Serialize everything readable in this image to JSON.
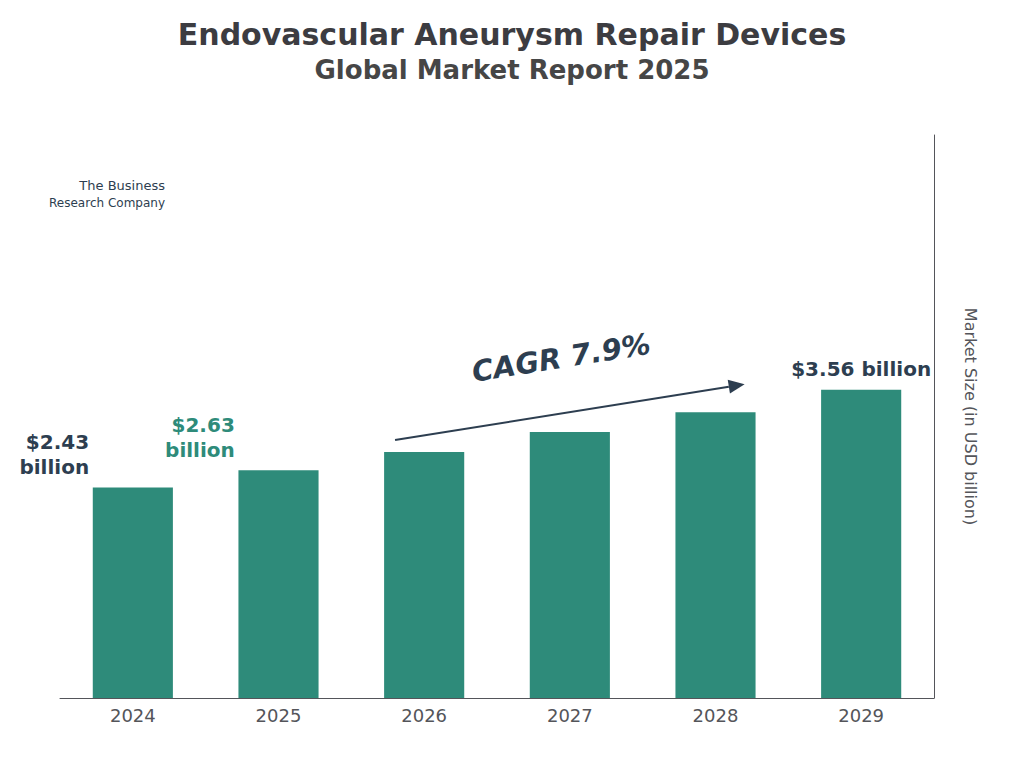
{
  "chart_data": {
    "type": "bar",
    "title": "Endovascular Aneurysm Repair Devices",
    "subtitle": "Global Market Report 2025",
    "categories": [
      "2024",
      "2025",
      "2026",
      "2027",
      "2028",
      "2029"
    ],
    "values": [
      2.43,
      2.63,
      2.84,
      3.07,
      3.3,
      3.56
    ],
    "color": "#2e8b7a",
    "ylabel": "Market Size (in USD billion)",
    "ylim": [
      0,
      6.5
    ],
    "grid": false,
    "tick_labels": "x",
    "annotations": [
      {
        "text": "$2.43\nbillion",
        "x": "2024",
        "y": 2.43,
        "color": "#2d3e50"
      },
      {
        "text": "$2.63\nbillion",
        "x": "2025",
        "y": 2.63,
        "color": "#2e8b7a"
      },
      {
        "text": "$3.56 billion",
        "x": "2029",
        "y": 3.56,
        "color": "#2d3e50"
      },
      {
        "text": "CAGR 7.9%",
        "color": "#2d3e50"
      }
    ],
    "logo": [
      "The Business",
      "Research Company"
    ]
  }
}
